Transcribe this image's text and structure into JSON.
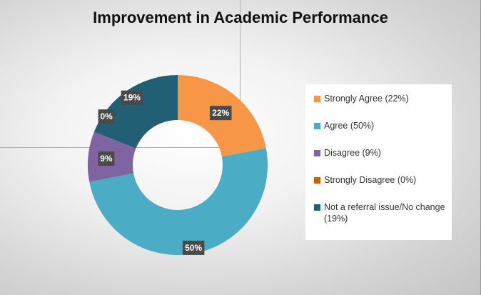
{
  "chart_data": {
    "type": "pie",
    "subtype": "donut",
    "title": "Improvement in Academic Performance",
    "slices": [
      {
        "label": "Strongly Agree (22%)",
        "value": 22,
        "data_label": "22%",
        "color": "#F79646"
      },
      {
        "label": "Agree (50%)",
        "value": 50,
        "data_label": "50%",
        "color": "#4BACC6"
      },
      {
        "label": "Disagree (9%)",
        "value": 9,
        "data_label": "9%",
        "color": "#8064A2"
      },
      {
        "label": "Strongly Disagree (0%)",
        "value": 0,
        "data_label": "0%",
        "color": "#C0650A"
      },
      {
        "label": "Not a referral issue/No change (19%)",
        "value": 19,
        "data_label": "19%",
        "color": "#215F75"
      }
    ],
    "legend_position": "right"
  }
}
